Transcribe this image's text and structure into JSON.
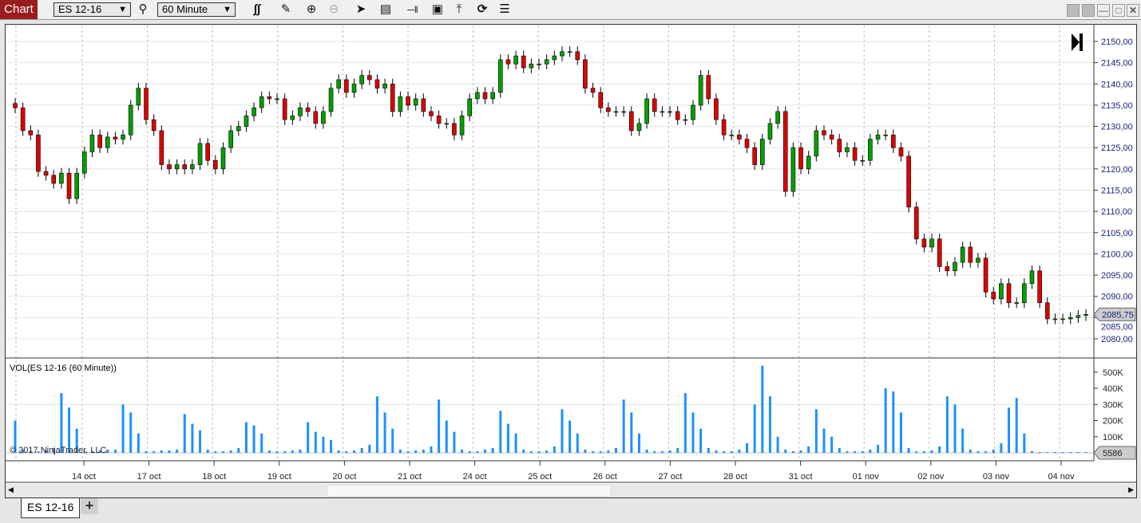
{
  "toolbar": {
    "chart_label": "Chart",
    "instrument": "ES 12-16",
    "interval": "60 Minute",
    "icons": [
      "search-icon",
      "bar-type-icon",
      "pencil-icon",
      "zoom-in-icon",
      "zoom-out-icon",
      "pointer-icon",
      "data-box-icon",
      "bar-spacing-icon",
      "drawing-tools-icon",
      "indicator-icon",
      "reload-icon",
      "properties-icon"
    ]
  },
  "window": {
    "icons": [
      "window-link-icon",
      "window-link-icon-2",
      "minimize-icon",
      "maximize-icon",
      "close-icon"
    ]
  },
  "volume_panel": {
    "label": "VOL(ES 12-16 (60 Minute))"
  },
  "copyright": "© 2017 NinjaTrader, LLC",
  "tabs": [
    {
      "label": "ES 12-16"
    }
  ],
  "tab_add": "+",
  "colors": {
    "up": "#00a000",
    "down": "#e00000",
    "volume": "#1e90ff",
    "accent": "#9b1c1c",
    "price_text": "#1a237e"
  },
  "chart_data": {
    "type": "candlestick",
    "instrument": "ES 12-16",
    "interval": "60 Minute",
    "ylim": [
      2077,
      2153
    ],
    "y_ticks": [
      "2080,00",
      "2085,00",
      "2090,00",
      "2095,00",
      "2100,00",
      "2105,00",
      "2110,00",
      "2115,00",
      "2120,00",
      "2125,00",
      "2130,00",
      "2135,00",
      "2140,00",
      "2145,00",
      "2150,00"
    ],
    "x_ticks": [
      "14 oct",
      "17 oct",
      "18 oct",
      "19 oct",
      "20 oct",
      "21 oct",
      "24 oct",
      "25 oct",
      "26 oct",
      "27 oct",
      "28 oct",
      "31 oct",
      "01 nov",
      "02 nov",
      "03 nov",
      "04 nov"
    ],
    "last_price": "2085,75",
    "closes": [
      2134.4,
      2129,
      2128,
      2119.4,
      2118.5,
      2116.6,
      2119,
      2113,
      2119,
      2124,
      2128,
      2125,
      2127.5,
      2127,
      2128,
      2135,
      2139,
      2131.6,
      2129,
      2121,
      2120,
      2121,
      2120,
      2121,
      2126,
      2122,
      2120,
      2125,
      2129,
      2130,
      2132.5,
      2134.4,
      2137,
      2136.5,
      2136.5,
      2131.6,
      2132.5,
      2134.4,
      2133.5,
      2130.7,
      2133.5,
      2139,
      2141,
      2138,
      2140,
      2142,
      2141,
      2139,
      2140,
      2133.5,
      2137,
      2135,
      2136.5,
      2133.5,
      2132.5,
      2130.7,
      2130.7,
      2128,
      2132.5,
      2136.5,
      2138,
      2136.5,
      2138,
      2145.7,
      2144.7,
      2146.6,
      2143.8,
      2144.7,
      2144.7,
      2145.7,
      2146.6,
      2147.6,
      2147.6,
      2145.7,
      2139,
      2138,
      2134.4,
      2133.5,
      2133.5,
      2133.5,
      2129,
      2130.7,
      2136.5,
      2133.5,
      2133.5,
      2133.5,
      2131.6,
      2131.6,
      2135,
      2142,
      2136.5,
      2131.6,
      2128,
      2128,
      2127,
      2125,
      2121,
      2127,
      2130.7,
      2133.5,
      2114.7,
      2125,
      2120,
      2123,
      2129,
      2128,
      2127,
      2124,
      2125,
      2122,
      2122,
      2127,
      2128,
      2128,
      2125,
      2123,
      2111,
      2103.5,
      2101.6,
      2103.5,
      2097,
      2096,
      2098,
      2101.6,
      2098,
      2099,
      2091,
      2089.4,
      2093,
      2088.5,
      2088.5,
      2093,
      2096,
      2088.5,
      2084.7,
      2084.7,
      2084.7,
      2085,
      2085.5,
      2085.75
    ],
    "volume": {
      "ylim": [
        0,
        560000
      ],
      "y_ticks": [
        "100K",
        "200K",
        "300K",
        "400K",
        "500K"
      ],
      "last_value": "5586",
      "values_k": [
        200,
        20,
        10,
        10,
        15,
        30,
        370,
        280,
        150,
        10,
        10,
        15,
        20,
        20,
        300,
        250,
        120,
        10,
        10,
        15,
        15,
        20,
        240,
        180,
        140,
        20,
        10,
        10,
        15,
        30,
        190,
        170,
        120,
        15,
        10,
        10,
        15,
        20,
        190,
        130,
        100,
        80,
        15,
        10,
        15,
        30,
        50,
        350,
        250,
        150,
        20,
        10,
        15,
        20,
        40,
        330,
        200,
        130,
        20,
        10,
        10,
        20,
        30,
        260,
        180,
        120,
        20,
        10,
        10,
        15,
        40,
        270,
        200,
        120,
        20,
        10,
        10,
        15,
        30,
        330,
        250,
        120,
        20,
        10,
        10,
        15,
        30,
        370,
        250,
        150,
        30,
        15,
        10,
        10,
        20,
        60,
        300,
        540,
        350,
        100,
        20,
        10,
        15,
        40,
        270,
        150,
        100,
        30,
        10,
        10,
        10,
        20,
        50,
        400,
        380,
        250,
        30,
        10,
        10,
        15,
        40,
        350,
        300,
        150,
        20,
        10,
        10,
        20,
        60,
        280,
        340,
        120,
        10,
        5,
        5,
        5,
        5,
        5,
        5,
        5
      ]
    }
  }
}
